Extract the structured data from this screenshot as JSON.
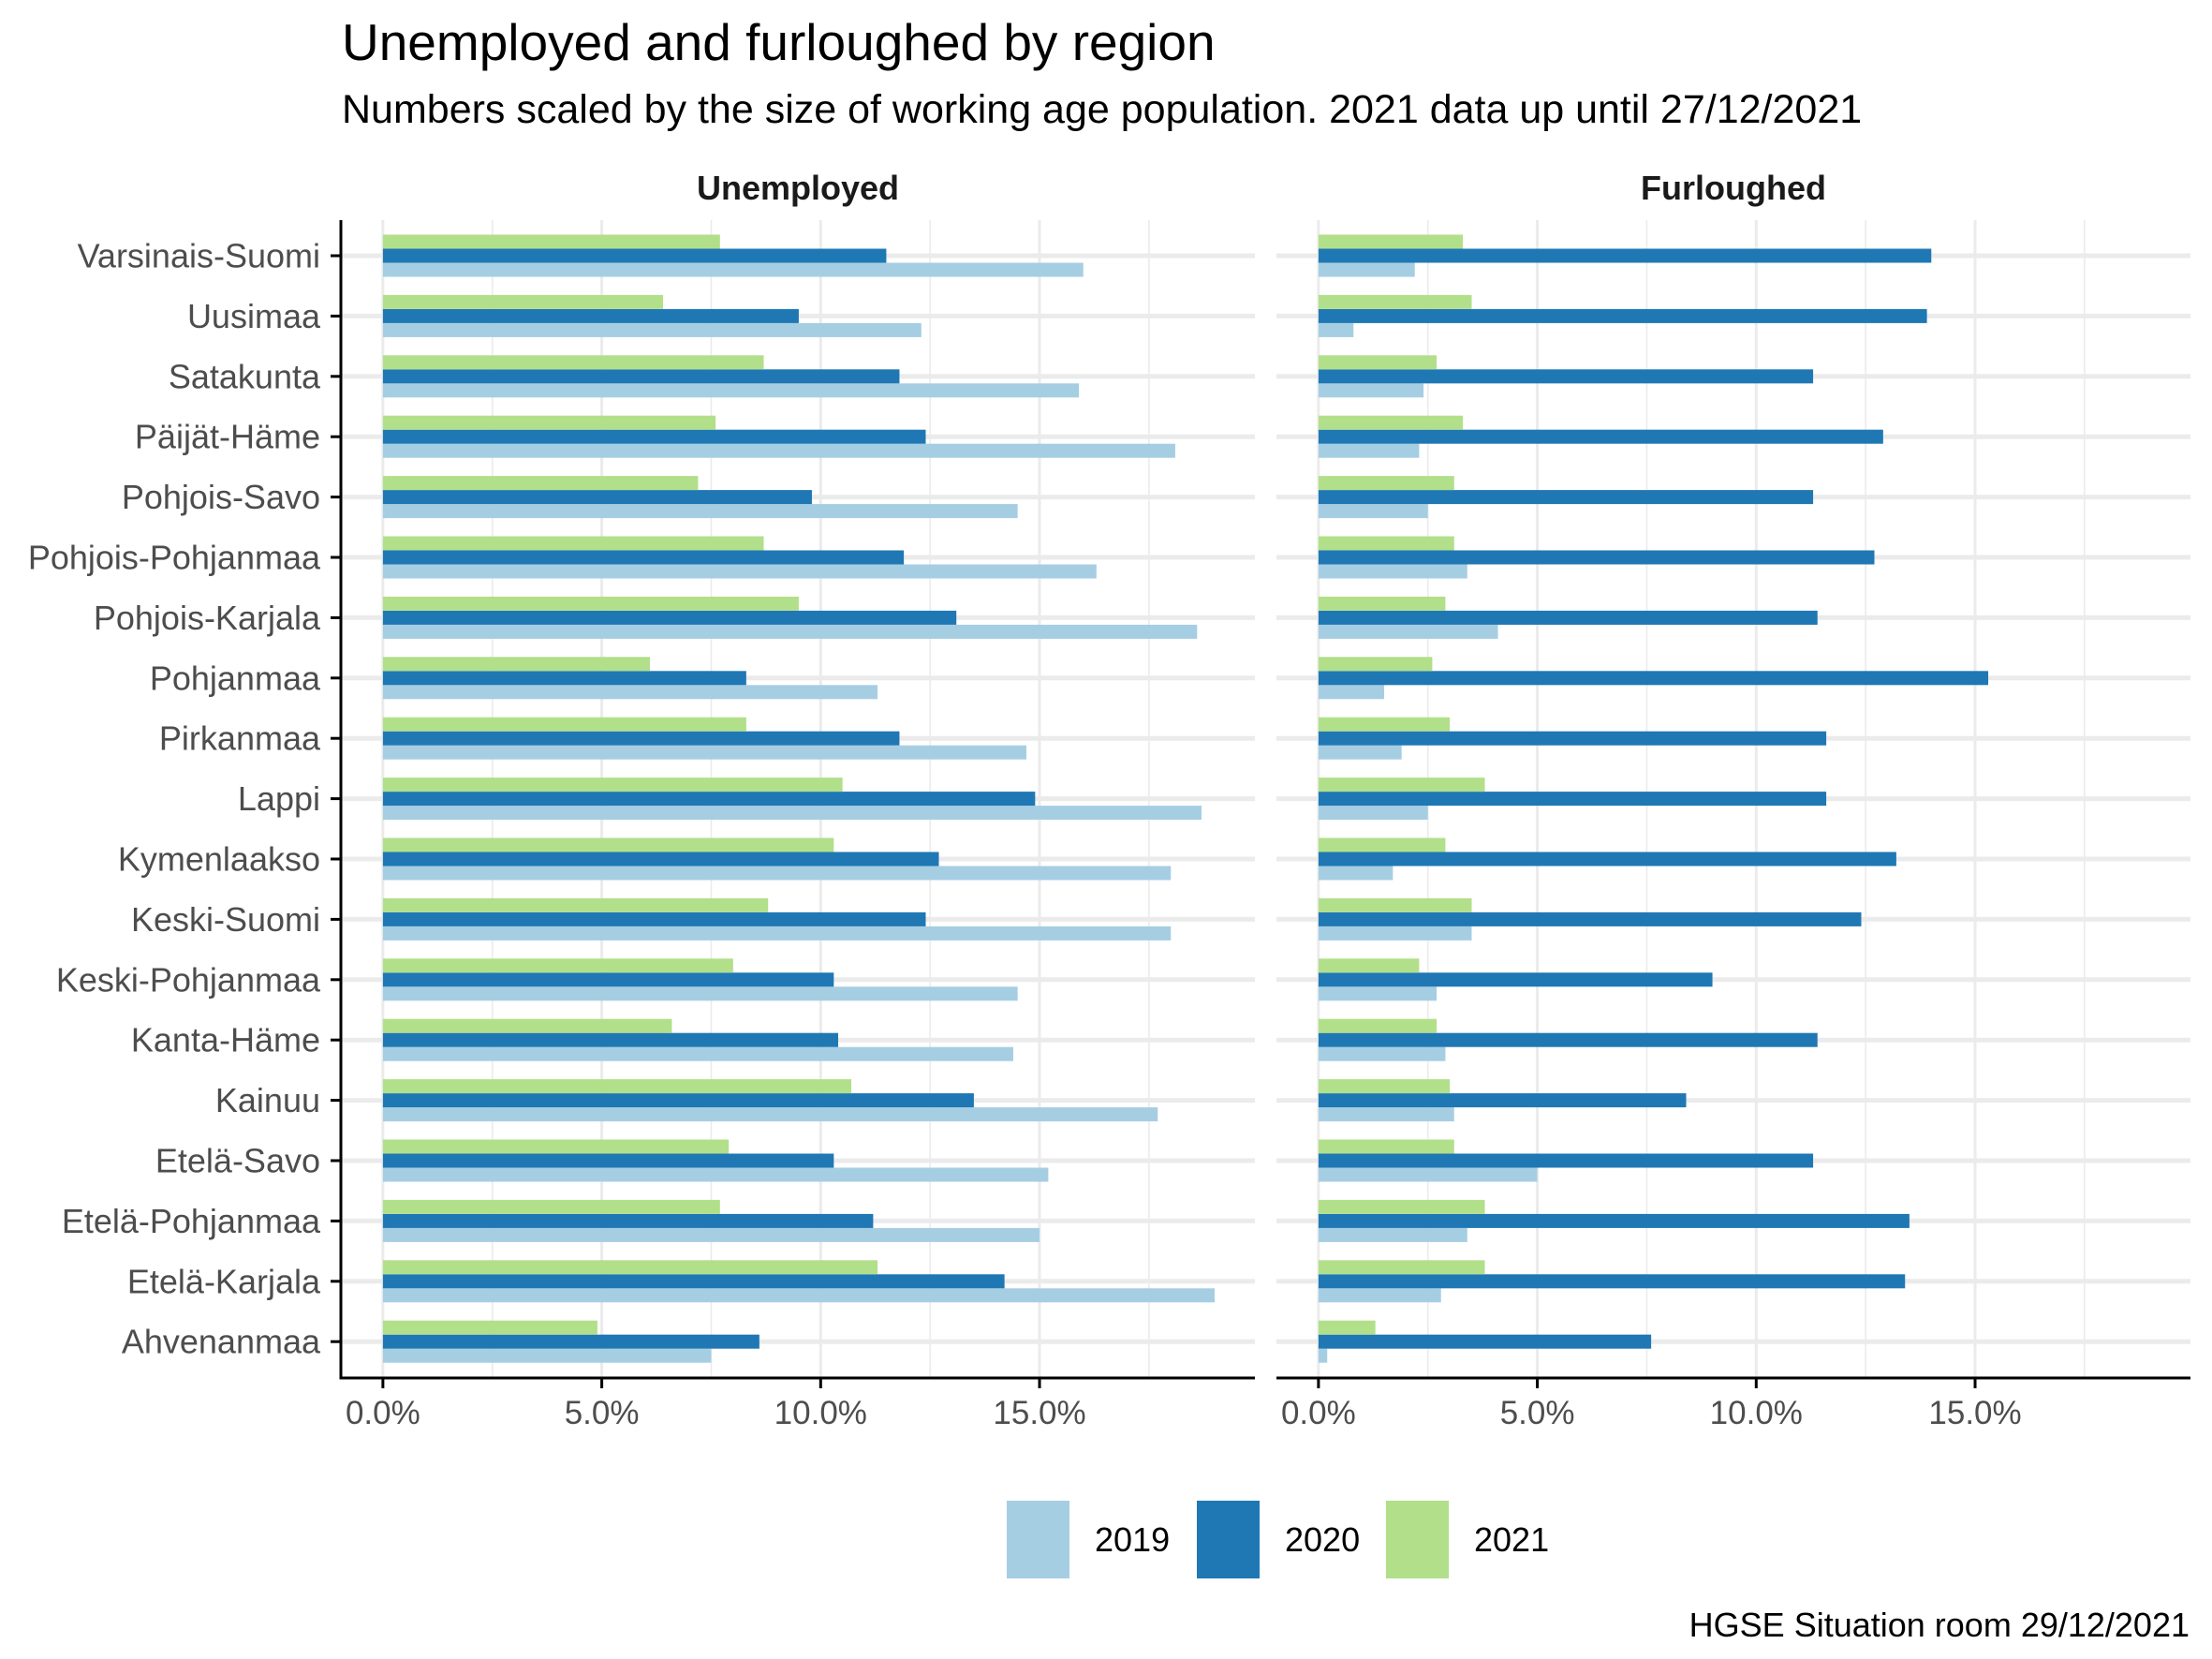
{
  "chart_data": {
    "type": "bar",
    "orientation": "horizontal",
    "title": "Unemployed and furloughed by region",
    "subtitle": "Numbers scaled by the size of working age population. 2021 data up until 27/12/2021",
    "caption": "HGSE Situation room 29/12/2021",
    "xlim": [
      -0.96,
      19.92
    ],
    "x_ticks": [
      0,
      5,
      10,
      15
    ],
    "x_tick_labels": [
      "0.0%",
      "5.0%",
      "10.0%",
      "15.0%"
    ],
    "x_minor_ticks": [
      2.5,
      7.5,
      12.5,
      17.5
    ],
    "grid": true,
    "legend_position": "bottom",
    "legend": [
      {
        "label": "2019",
        "color": "#a6cee3"
      },
      {
        "label": "2020",
        "color": "#1f78b4"
      },
      {
        "label": "2021",
        "color": "#b2df8a"
      }
    ],
    "categories": [
      "Varsinais-Suomi",
      "Uusimaa",
      "Satakunta",
      "Päijät-Häme",
      "Pohjois-Savo",
      "Pohjois-Pohjanmaa",
      "Pohjois-Karjala",
      "Pohjanmaa",
      "Pirkanmaa",
      "Lappi",
      "Kymenlaakso",
      "Keski-Suomi",
      "Keski-Pohjanmaa",
      "Kanta-Häme",
      "Kainuu",
      "Etelä-Savo",
      "Etelä-Pohjanmaa",
      "Etelä-Karjala",
      "Ahvenanmaa"
    ],
    "panels": [
      {
        "name": "Unemployed",
        "series": [
          {
            "name": "2019",
            "values": [
              16.0,
              12.3,
              15.9,
              18.1,
              14.5,
              16.3,
              18.6,
              11.3,
              14.7,
              18.7,
              18.0,
              18.0,
              14.5,
              14.4,
              17.7,
              15.2,
              15.0,
              19.0,
              7.5
            ]
          },
          {
            "name": "2020",
            "values": [
              11.5,
              9.5,
              11.8,
              12.4,
              9.8,
              11.9,
              13.1,
              8.3,
              11.8,
              14.9,
              12.7,
              12.4,
              10.3,
              10.4,
              13.5,
              10.3,
              11.2,
              14.2,
              8.6
            ]
          },
          {
            "name": "2021",
            "values": [
              7.7,
              6.4,
              8.7,
              7.6,
              7.2,
              8.7,
              9.5,
              6.1,
              8.3,
              10.5,
              10.3,
              8.8,
              8.0,
              6.6,
              10.7,
              7.9,
              7.7,
              11.3,
              4.9
            ]
          }
        ]
      },
      {
        "name": "Furloughed",
        "series": [
          {
            "name": "2019",
            "values": [
              2.2,
              0.8,
              2.4,
              2.3,
              2.5,
              3.4,
              4.1,
              1.5,
              1.9,
              2.5,
              1.7,
              3.5,
              2.7,
              2.9,
              3.1,
              5.0,
              3.4,
              2.8,
              0.2
            ]
          },
          {
            "name": "2020",
            "values": [
              14.0,
              13.9,
              11.3,
              12.9,
              11.3,
              12.7,
              11.4,
              15.3,
              11.6,
              11.6,
              13.2,
              12.4,
              9.0,
              11.4,
              8.4,
              11.3,
              13.5,
              13.4,
              7.6
            ]
          },
          {
            "name": "2021",
            "values": [
              3.3,
              3.5,
              2.7,
              3.3,
              3.1,
              3.1,
              2.9,
              2.6,
              3.0,
              3.8,
              2.9,
              3.5,
              2.3,
              2.7,
              3.0,
              3.1,
              3.8,
              3.8,
              1.3
            ]
          }
        ]
      }
    ]
  }
}
